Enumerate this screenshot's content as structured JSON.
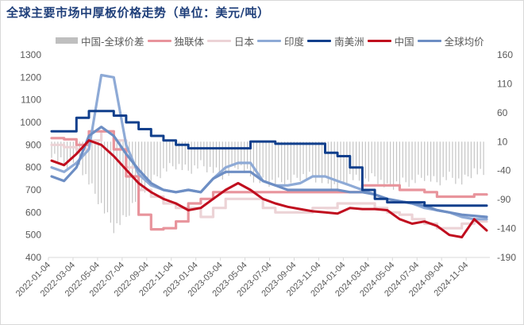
{
  "title": "全球主要市场中厚板价格走势（单位：美元/吨）",
  "legend": [
    {
      "label": "中国-全球价差",
      "type": "bar",
      "color": "#bfbfbf"
    },
    {
      "label": "独联体",
      "type": "line",
      "color": "#e8949c"
    },
    {
      "label": "日本",
      "type": "line",
      "color": "#ecd3d6"
    },
    {
      "label": "印度",
      "type": "line",
      "color": "#8eaad6"
    },
    {
      "label": "南美洲",
      "type": "line",
      "color": "#103f8c"
    },
    {
      "label": "中国",
      "type": "line",
      "color": "#c00d1e"
    },
    {
      "label": "全球均价",
      "type": "line",
      "color": "#6d8ec4"
    }
  ],
  "chart_data": {
    "type": "line",
    "title": "全球主要市场中厚板价格走势（单位：美元/吨）",
    "xlabel": "",
    "ylabel": "美元/吨",
    "y_left": {
      "min": 400,
      "max": 1300,
      "ticks": [
        1300,
        1200,
        1100,
        1000,
        900,
        800,
        700,
        600,
        500,
        400
      ]
    },
    "y_right": {
      "min": -190,
      "max": 160,
      "ticks": [
        160,
        110,
        60,
        10,
        -40,
        -90,
        -140,
        -190
      ]
    },
    "x_tick_labels": [
      "2022-01-04",
      "2022-03-04",
      "2022-05-04",
      "2022-07-04",
      "2022-09-04",
      "2022-11-04",
      "2023-01-04",
      "2023-03-04",
      "2023-05-04",
      "2023-07-04",
      "2023-09-04",
      "2023-11-04",
      "2024-01-04",
      "2024-03-04",
      "2024-05-04",
      "2024-07-04",
      "2024-09-04",
      "2024-11-04"
    ],
    "x": [
      "2022-01",
      "2022-02",
      "2022-03",
      "2022-04",
      "2022-05",
      "2022-06",
      "2022-07",
      "2022-08",
      "2022-09",
      "2022-10",
      "2022-11",
      "2022-12",
      "2023-01",
      "2023-02",
      "2023-03",
      "2023-04",
      "2023-05",
      "2023-06",
      "2023-07",
      "2023-08",
      "2023-09",
      "2023-10",
      "2023-11",
      "2023-12",
      "2024-01",
      "2024-02",
      "2024-03",
      "2024-04",
      "2024-05",
      "2024-06",
      "2024-07",
      "2024-09",
      "2024-10",
      "2024-11",
      "2024-12",
      "2025-01"
    ],
    "grid": false,
    "legend_position": "top",
    "series": [
      {
        "name": "独联体",
        "axis": "left",
        "values": [
          930,
          925,
          900,
          960,
          960,
          880,
          760,
          590,
          525,
          530,
          560,
          640,
          660,
          690,
          690,
          690,
          690,
          690,
          690,
          690,
          690,
          690,
          690,
          690,
          690,
          720,
          720,
          720,
          700,
          700,
          690,
          670,
          670,
          670,
          680,
          680
        ]
      },
      {
        "name": "日本",
        "axis": "left",
        "values": [
          900,
          890,
          880,
          920,
          960,
          920,
          800,
          700,
          670,
          640,
          620,
          620,
          580,
          620,
          660,
          660,
          660,
          620,
          600,
          600,
          600,
          620,
          620,
          640,
          640,
          640,
          620,
          600,
          590,
          570,
          550,
          530,
          530,
          550,
          560,
          560
        ]
      },
      {
        "name": "印度",
        "axis": "left",
        "values": [
          800,
          780,
          820,
          880,
          1210,
          1200,
          900,
          770,
          720,
          700,
          690,
          700,
          690,
          750,
          800,
          820,
          820,
          740,
          720,
          720,
          730,
          760,
          760,
          740,
          720,
          700,
          680,
          660,
          650,
          640,
          620,
          610,
          600,
          580,
          570,
          570
        ]
      },
      {
        "name": "南美洲",
        "axis": "left",
        "values": [
          960,
          960,
          1020,
          1050,
          1050,
          1030,
          1000,
          970,
          940,
          920,
          900,
          885,
          885,
          885,
          885,
          885,
          915,
          915,
          905,
          905,
          905,
          905,
          865,
          850,
          800,
          700,
          660,
          645,
          645,
          645,
          630,
          630,
          630,
          630,
          630,
          630
        ]
      },
      {
        "name": "中国",
        "axis": "left",
        "values": [
          830,
          810,
          860,
          920,
          900,
          850,
          790,
          730,
          690,
          660,
          640,
          610,
          620,
          660,
          700,
          730,
          700,
          660,
          640,
          625,
          615,
          605,
          600,
          595,
          620,
          615,
          615,
          610,
          570,
          550,
          560,
          540,
          500,
          490,
          570,
          520
        ]
      },
      {
        "name": "全球均价",
        "axis": "left",
        "values": [
          760,
          740,
          800,
          940,
          980,
          940,
          860,
          790,
          730,
          700,
          690,
          700,
          690,
          750,
          780,
          780,
          780,
          740,
          720,
          700,
          700,
          700,
          700,
          700,
          690,
          690,
          680,
          660,
          650,
          640,
          630,
          610,
          600,
          590,
          585,
          580
        ]
      },
      {
        "name": "中国-全球价差",
        "axis": "right",
        "type": "bar",
        "values": [
          -10,
          -30,
          -20,
          -60,
          -100,
          -140,
          -120,
          -80,
          -60,
          -40,
          -30,
          -40,
          -30,
          -40,
          -50,
          -30,
          -50,
          -60,
          -60,
          -60,
          -50,
          -50,
          -60,
          -70,
          -50,
          -60,
          -50,
          -70,
          -60,
          -60,
          -50,
          -60,
          -50,
          -60,
          -40,
          -50
        ]
      }
    ]
  },
  "axes": {
    "left_ticks": [
      "1300",
      "1200",
      "1100",
      "1000",
      "900",
      "800",
      "700",
      "600",
      "500",
      "400"
    ],
    "right_ticks": [
      "160",
      "110",
      "60",
      "10",
      "-40",
      "-90",
      "-140",
      "-190"
    ]
  }
}
